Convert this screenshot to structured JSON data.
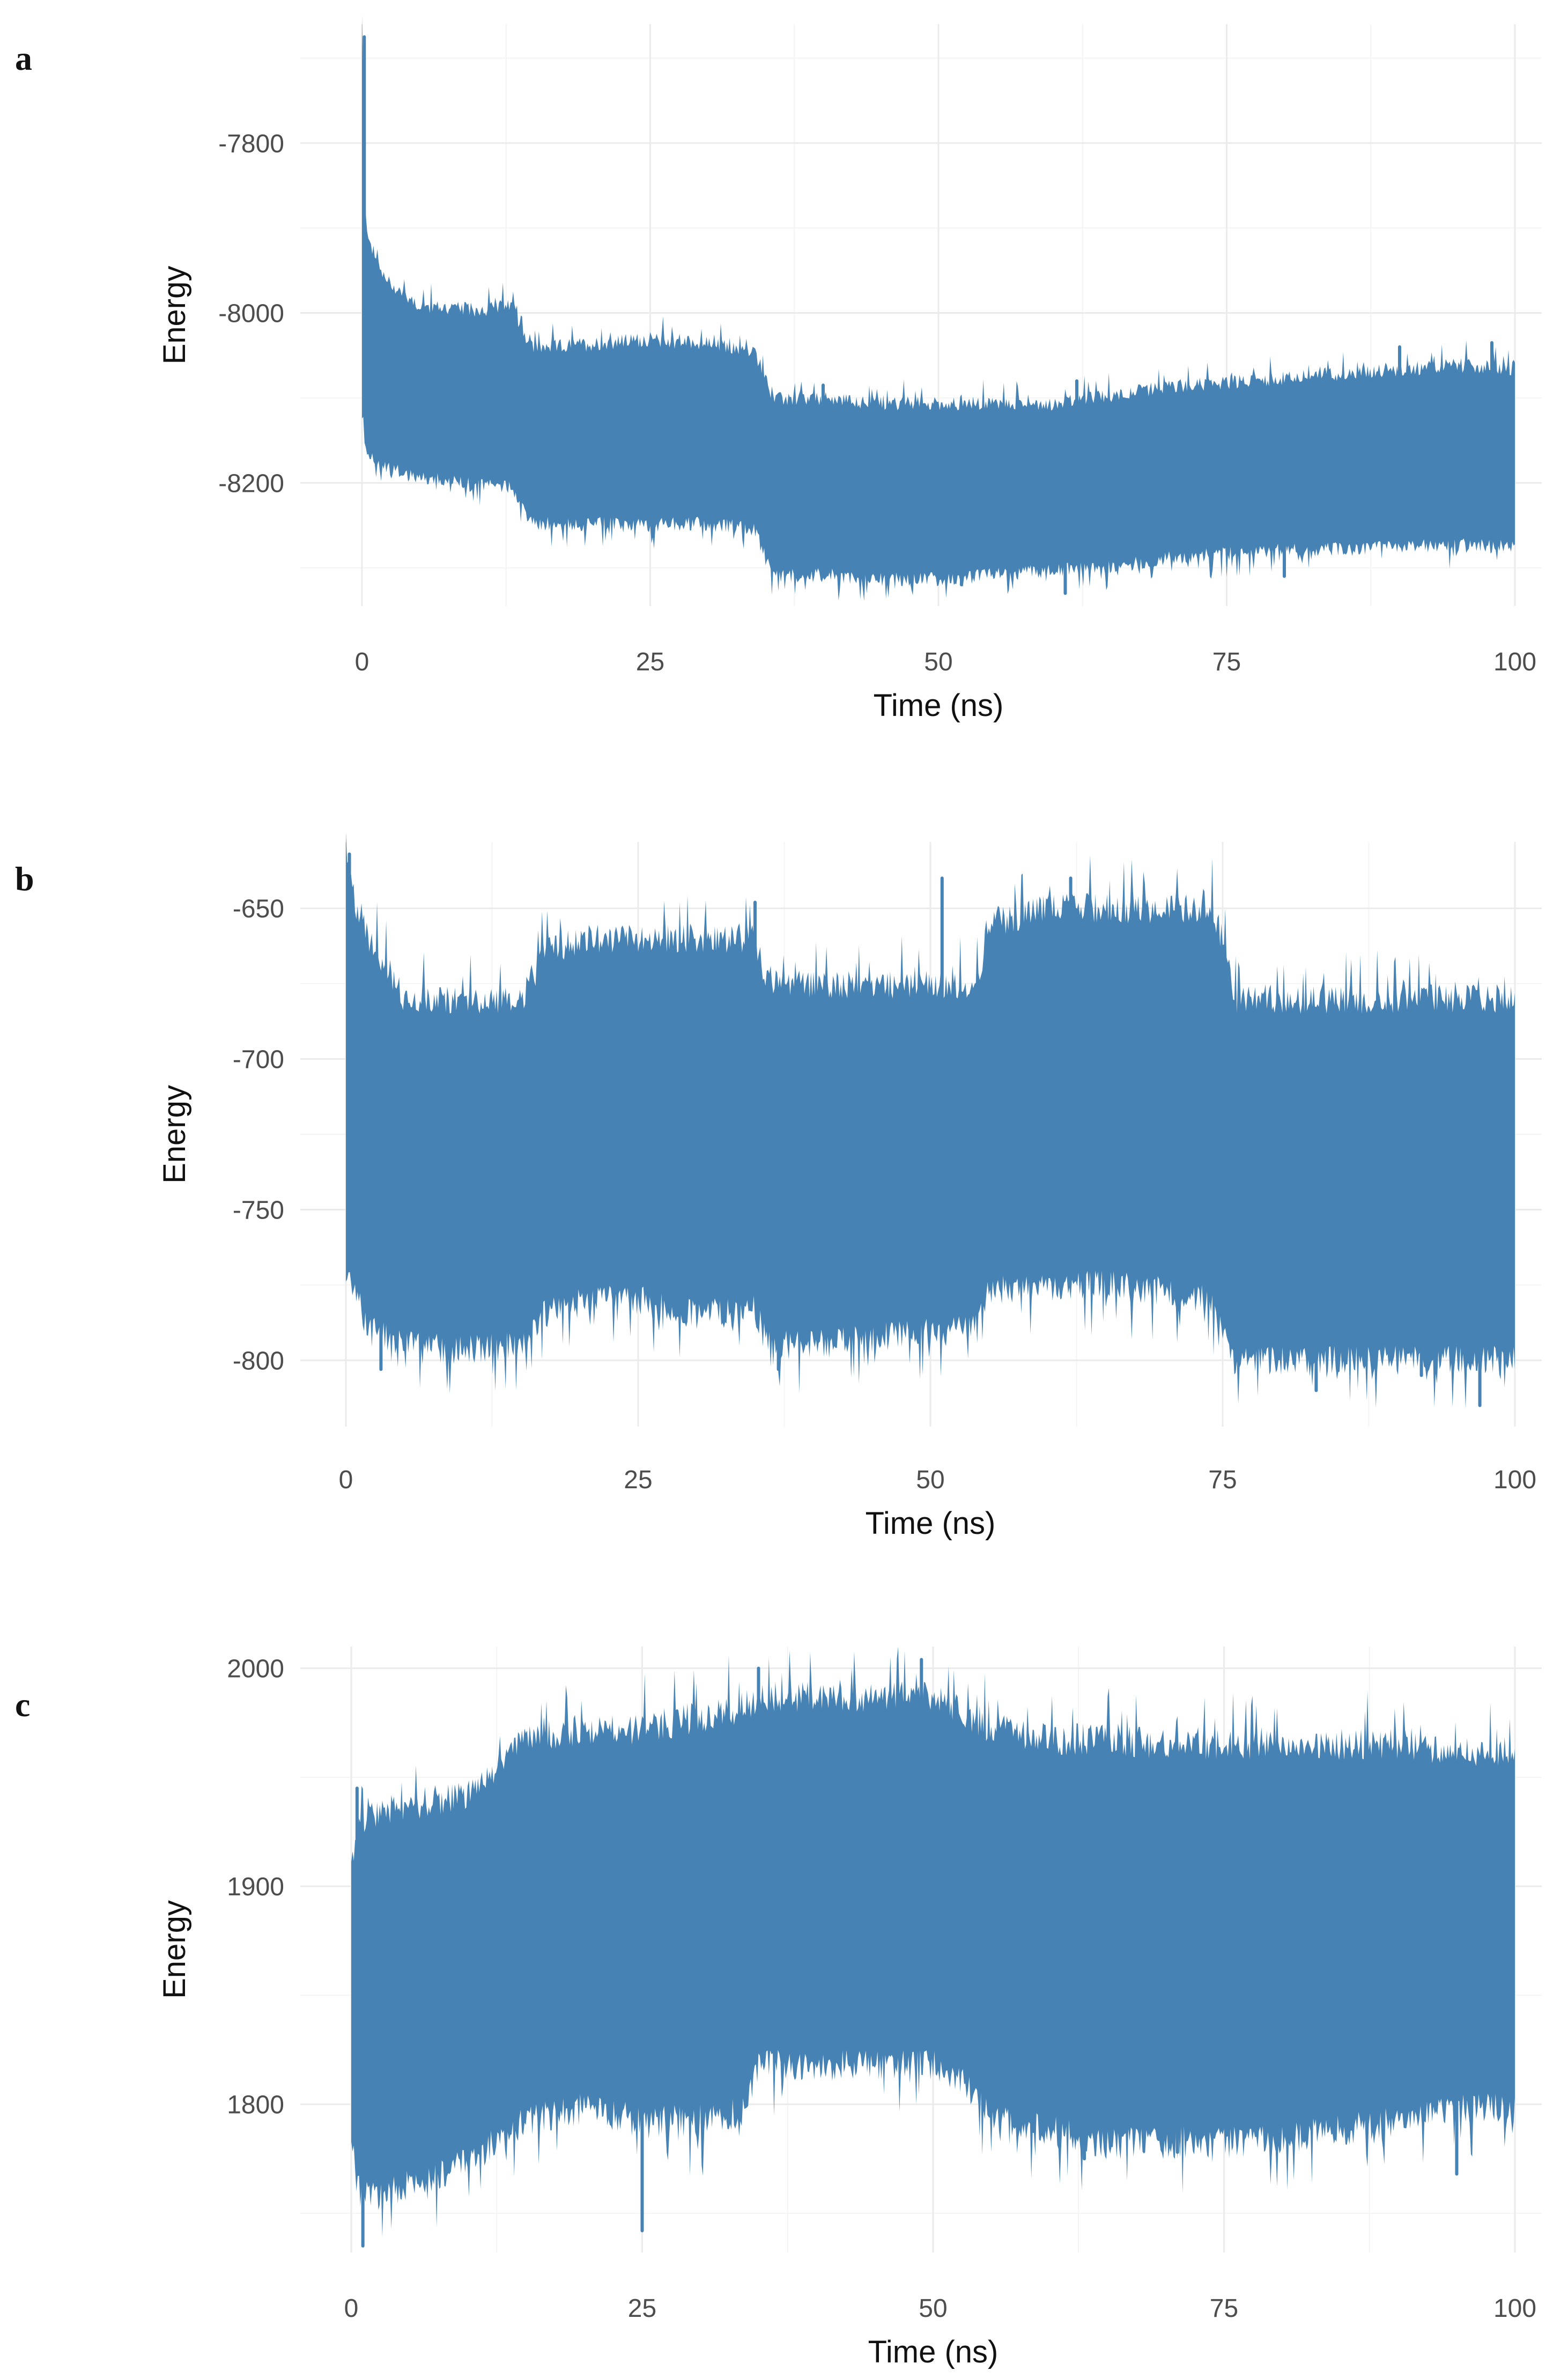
{
  "figure": {
    "line_color": "#4682b4"
  },
  "chart_data": [
    {
      "panel": "a",
      "type": "line",
      "xlabel": "Time (ns)",
      "ylabel": "Energy",
      "xlim": [
        0,
        100
      ],
      "ylim": [
        -8345,
        -7660
      ],
      "x_ticks": [
        0,
        25,
        50,
        75,
        100
      ],
      "y_ticks": [
        -7800,
        -8000,
        -8200
      ],
      "grid": true,
      "envelope": {
        "x": [
          0,
          0.3,
          1,
          2,
          5,
          10,
          13,
          14,
          14.5,
          15,
          20,
          25,
          30,
          34,
          35,
          35.5,
          40,
          45,
          50,
          55,
          60,
          65,
          70,
          75,
          80,
          85,
          90,
          95,
          100
        ],
        "upper": [
          -7675,
          -7900,
          -7940,
          -7970,
          -8000,
          -8005,
          -8000,
          -8030,
          -8045,
          -8050,
          -8045,
          -8040,
          -8045,
          -8055,
          -8080,
          -8110,
          -8110,
          -8115,
          -8115,
          -8115,
          -8115,
          -8105,
          -8095,
          -8090,
          -8085,
          -8080,
          -8075,
          -8070,
          -8075
        ],
        "lower": [
          -8100,
          -8145,
          -8160,
          -8175,
          -8185,
          -8195,
          -8195,
          -8220,
          -8235,
          -8240,
          -8240,
          -8240,
          -8240,
          -8245,
          -8280,
          -8300,
          -8300,
          -8305,
          -8305,
          -8300,
          -8295,
          -8290,
          -8280,
          -8275,
          -8270,
          -8270,
          -8265,
          -8265,
          -8265
        ]
      },
      "spikes": [
        [
          0.2,
          -7675
        ],
        [
          40,
          -8085
        ],
        [
          62,
          -8080
        ],
        [
          90,
          -8040
        ],
        [
          98,
          -8035
        ],
        [
          52,
          -8320
        ],
        [
          61,
          -8330
        ],
        [
          80,
          -8310
        ],
        [
          43,
          -8310
        ]
      ]
    },
    {
      "panel": "b",
      "type": "line",
      "xlabel": "Time (ns)",
      "ylabel": "Energy",
      "xlim": [
        0,
        100
      ],
      "ylim": [
        -822,
        -628
      ],
      "x_ticks": [
        0,
        25,
        50,
        75,
        100
      ],
      "y_ticks": [
        -650,
        -700,
        -750,
        -800
      ],
      "grid": true,
      "envelope": {
        "x": [
          0,
          0.5,
          2,
          5,
          10,
          15,
          17,
          20,
          25,
          30,
          35,
          36,
          40,
          45,
          50,
          54,
          55,
          60,
          65,
          70,
          74,
          75,
          76,
          80,
          85,
          90,
          95,
          100
        ],
        "upper": [
          -635,
          -650,
          -665,
          -685,
          -685,
          -685,
          -670,
          -665,
          -665,
          -665,
          -665,
          -680,
          -680,
          -680,
          -680,
          -680,
          -660,
          -655,
          -655,
          -655,
          -655,
          -665,
          -685,
          -685,
          -685,
          -685,
          -685,
          -685
        ],
        "lower": [
          -760,
          -770,
          -785,
          -790,
          -792,
          -790,
          -780,
          -775,
          -775,
          -780,
          -778,
          -790,
          -790,
          -788,
          -785,
          -785,
          -772,
          -770,
          -770,
          -772,
          -775,
          -785,
          -795,
          -795,
          -795,
          -795,
          -795,
          -795
        ]
      },
      "spikes": [
        [
          0.3,
          -632
        ],
        [
          51,
          -640
        ],
        [
          62,
          -640
        ],
        [
          35,
          -648
        ],
        [
          3,
          -803
        ],
        [
          37,
          -803
        ],
        [
          83,
          -810
        ],
        [
          97,
          -815
        ],
        [
          92,
          -805
        ]
      ]
    },
    {
      "panel": "c",
      "type": "line",
      "xlabel": "Time (ns)",
      "ylabel": "Energy",
      "xlim": [
        0,
        100
      ],
      "ylim": [
        1732,
        2010
      ],
      "x_ticks": [
        0,
        25,
        50,
        75,
        100
      ],
      "y_ticks": [
        2000,
        1900,
        1800
      ],
      "grid": true,
      "envelope": {
        "x": [
          0,
          0.5,
          2,
          5,
          10,
          15,
          20,
          25,
          30,
          34,
          35,
          40,
          45,
          50,
          52,
          55,
          60,
          65,
          70,
          75,
          80,
          85,
          90,
          95,
          100
        ],
        "upper": [
          1905,
          1920,
          1925,
          1930,
          1935,
          1960,
          1965,
          1965,
          1970,
          1975,
          1980,
          1980,
          1980,
          1980,
          1975,
          1965,
          1960,
          1960,
          1958,
          1958,
          1958,
          1958,
          1958,
          1955,
          1955
        ],
        "lower": [
          1790,
          1770,
          1765,
          1770,
          1780,
          1800,
          1805,
          1800,
          1800,
          1805,
          1825,
          1825,
          1825,
          1825,
          1820,
          1800,
          1795,
          1790,
          1790,
          1790,
          1792,
          1795,
          1800,
          1805,
          1805
        ]
      },
      "spikes": [
        [
          0.5,
          1945
        ],
        [
          35,
          2000
        ],
        [
          49,
          2004
        ],
        [
          25,
          1742
        ],
        [
          1,
          1735
        ],
        [
          63,
          1775
        ],
        [
          95,
          1768
        ],
        [
          71,
          1778
        ]
      ]
    }
  ]
}
